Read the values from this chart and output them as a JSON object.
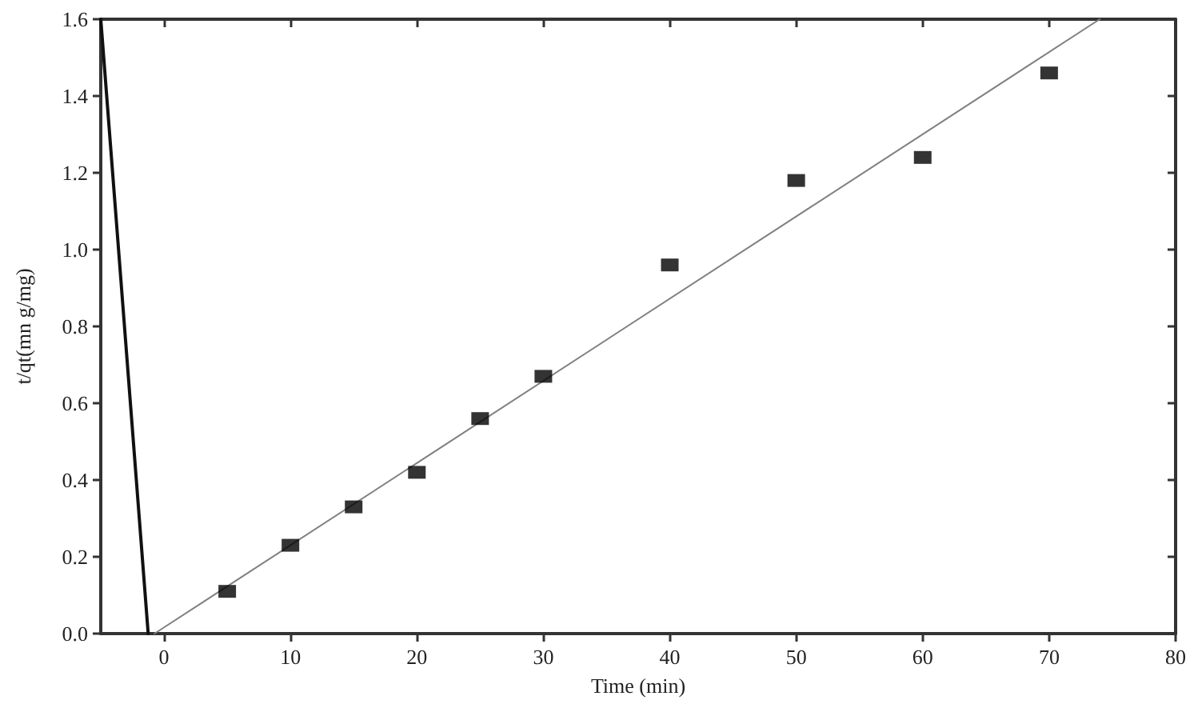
{
  "chart_data": {
    "type": "scatter",
    "xlabel": "Time (min)",
    "ylabel": "t/qt(mn g/mg)",
    "xlim": [
      -5,
      80
    ],
    "xticks": [
      0,
      10,
      20,
      30,
      40,
      50,
      60,
      70,
      80
    ],
    "ylim": [
      0,
      1.6
    ],
    "yticks": [
      {
        "value": 0,
        "label": "0.0"
      },
      {
        "value": 0.2,
        "label": "0.2"
      },
      {
        "value": 0.4,
        "label": "0.4"
      },
      {
        "value": 0.6,
        "label": "0.6"
      },
      {
        "value": 0.8,
        "label": "0.8"
      },
      {
        "value": 1.0,
        "label": "1.0"
      },
      {
        "value": 1.2,
        "label": "1.2"
      },
      {
        "value": 1.4,
        "label": "1.4"
      },
      {
        "value": 1.6,
        "label": "1.6"
      }
    ],
    "grid": false,
    "series": [
      {
        "marker": "square",
        "color": "#000000",
        "x": [
          5,
          10,
          15,
          20,
          25,
          30,
          40,
          50,
          60,
          70
        ],
        "values": [
          0.11,
          0.23,
          0.33,
          0.42,
          0.56,
          0.67,
          0.96,
          1.18,
          1.24,
          1.46
        ]
      },
      {
        "type": "line",
        "marker": "none",
        "line_style": "solid",
        "color": "#808080",
        "x": [
          -0.75,
          74
        ],
        "values": [
          0,
          1.6
        ]
      },
      {
        "type": "line",
        "marker": "none",
        "line_style": "solid",
        "color": "#111111",
        "x": [
          -5,
          -1.25
        ],
        "values": [
          1.6,
          0
        ]
      }
    ]
  }
}
